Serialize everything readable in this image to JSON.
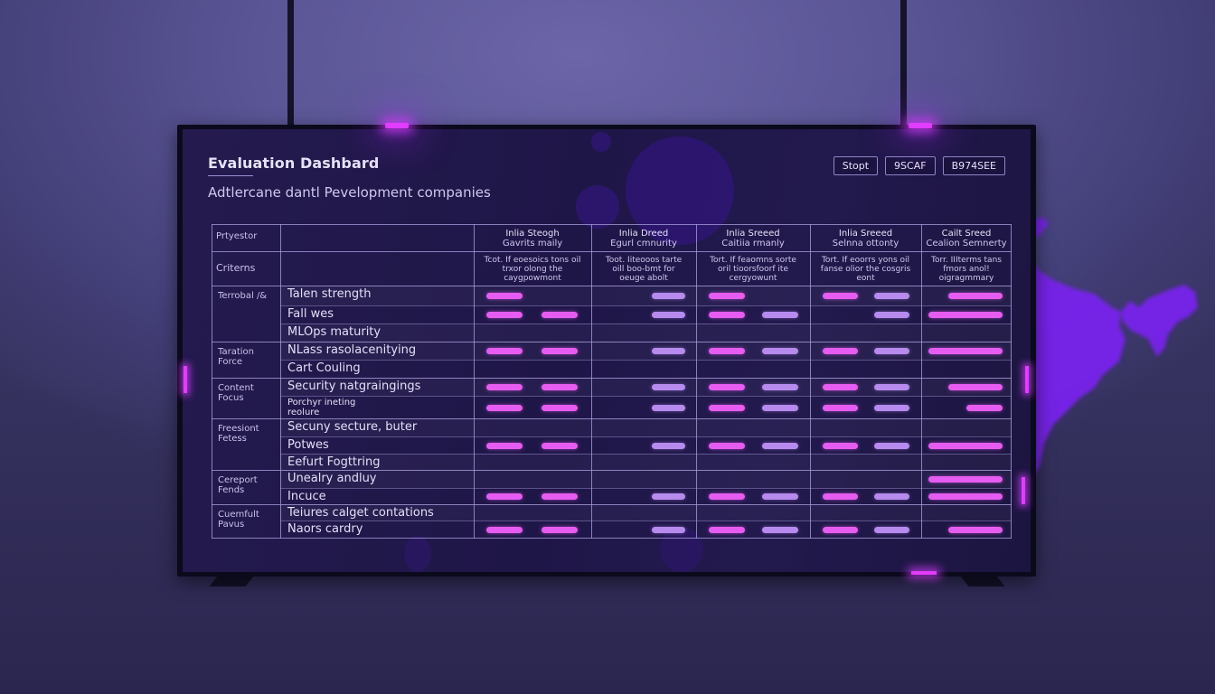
{
  "dashboard": {
    "title": "Evaluation Dashbard",
    "subtitle": "Adtlercane dantl Pevelopment companies",
    "buttons": [
      {
        "label": "Stopt"
      },
      {
        "label": "9SCAF"
      },
      {
        "label": "B974SEE"
      }
    ]
  },
  "table": {
    "corner_header_top": "Prtyestor",
    "corner_header_bottom": "Criterns",
    "columns": [
      {
        "title": "Inlia Steogh",
        "subtitle": "Gavrits maily",
        "description": "Tcot. If eoesoics tons oil trxor olong the caygpowmont"
      },
      {
        "title": "Inlia Dreed",
        "subtitle": "Egurl cmnurity",
        "description": "Toot. Iiteooos tarte oill boo-bmt for oeuge abolt"
      },
      {
        "title": "Inlia Sreeed",
        "subtitle": "Caitiia rmanly",
        "description": "Tort. If feaomns sorte oril tioorsfoorf ite cergyowunt"
      },
      {
        "title": "Inlia Sreeed",
        "subtitle": "Selnna ottonty",
        "description": "Tort. If eoorrs yons oil fanse olior the cosgris eont"
      },
      {
        "title": "Cailt Sreed",
        "subtitle": "Cealion Semnerty",
        "description": "Torr. IIIterms tans fmors anol! oigragmmary"
      }
    ],
    "groups": [
      {
        "label": "Terrobal /&",
        "rows": [
          {
            "criterion": "Talen strength",
            "bars": [
              [
                "pink",
                null
              ],
              [
                null,
                "lilac"
              ],
              [
                "pink",
                null
              ],
              [
                "pink",
                "lilac"
              ],
              [
                "pink-r"
              ]
            ]
          },
          {
            "criterion": "Fall wes",
            "bars": [
              [
                "pink",
                "pink"
              ],
              [
                null,
                "lilac"
              ],
              [
                "pink",
                "lilac"
              ],
              [
                null,
                "lilac"
              ],
              [
                "pink-wide"
              ]
            ]
          },
          {
            "criterion": "MLOps maturity",
            "bars": [
              [],
              [],
              [],
              [],
              []
            ]
          }
        ]
      },
      {
        "label": "Taration Force",
        "rows": [
          {
            "criterion": "NLass rasolacenitying",
            "bars": [
              [
                "pink",
                "pink"
              ],
              [
                null,
                "lilac"
              ],
              [
                "pink",
                "lilac"
              ],
              [
                "pink",
                "lilac"
              ],
              [
                "pink-wide"
              ]
            ]
          },
          {
            "criterion": "Cart Couling",
            "bars": [
              [],
              [],
              [],
              [],
              []
            ]
          }
        ]
      },
      {
        "label": "Content Focus",
        "rows": [
          {
            "criterion": "Security natgraingings",
            "bars": [
              [
                "pink",
                "pink"
              ],
              [
                null,
                "lilac"
              ],
              [
                "pink",
                "lilac"
              ],
              [
                "pink",
                "lilac"
              ],
              [
                "pink-r"
              ]
            ]
          },
          {
            "criterion": "Porchyr ineting reolure",
            "small": true,
            "bars": [
              [
                "pink",
                "pink"
              ],
              [
                null,
                "lilac"
              ],
              [
                "pink",
                "lilac"
              ],
              [
                "pink",
                "lilac"
              ],
              [
                "pink-short"
              ]
            ]
          }
        ]
      },
      {
        "label": "Freesiont Fetess",
        "rows": [
          {
            "criterion": "Secuny secture, buter",
            "bars": [
              [],
              [],
              [],
              [],
              []
            ]
          },
          {
            "criterion": "Potwes",
            "bars": [
              [
                "pink",
                "pink"
              ],
              [
                null,
                "lilac"
              ],
              [
                "pink",
                "lilac"
              ],
              [
                "pink",
                "lilac"
              ],
              [
                "pink-wide"
              ]
            ]
          },
          {
            "criterion": "Eefurt Fogttring",
            "bars": [
              [],
              [],
              [],
              [],
              []
            ]
          }
        ]
      },
      {
        "label": "Cereport Fends",
        "rows": [
          {
            "criterion": "Unealry andluy",
            "bars": [
              [],
              [],
              [],
              [],
              [
                "pink-wide"
              ]
            ]
          },
          {
            "criterion": "Incuce",
            "bars": [
              [
                "pink",
                "pink"
              ],
              [
                null,
                "lilac"
              ],
              [
                "pink",
                "lilac"
              ],
              [
                "pink",
                "lilac"
              ],
              [
                "pink-wide"
              ]
            ]
          }
        ]
      },
      {
        "label": "Cuemfult Pavus",
        "rows": [
          {
            "criterion": "Teiures calget contations",
            "bars": [
              [],
              [],
              [],
              [],
              []
            ]
          },
          {
            "criterion": "Naors cardry",
            "bars": [
              [
                "pink",
                "pink"
              ],
              [
                null,
                "lilac"
              ],
              [
                "pink",
                "lilac"
              ],
              [
                "pink",
                "lilac"
              ],
              [
                "pink-r"
              ]
            ]
          }
        ]
      }
    ]
  },
  "colors": {
    "accent_pink": "#e65cf0",
    "accent_lilac": "#b78aee",
    "glow_magenta": "#e13cff",
    "screen_bg": "#1f1648",
    "wall_bg": "#5a5595",
    "map_fill": "#7a22f0"
  }
}
